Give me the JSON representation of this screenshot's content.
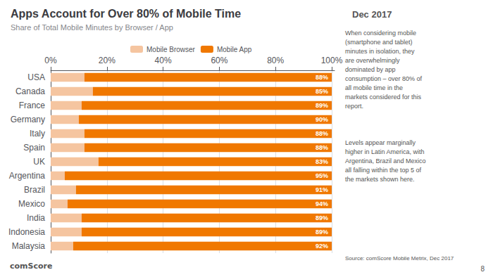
{
  "chart_data": {
    "type": "bar",
    "orientation": "horizontal",
    "stacked": true,
    "grid": true,
    "legend": "top",
    "title": "Apps Account for Over 80% of Mobile Time",
    "subtitle": "Share of Total Mobile Minutes by Browser / App",
    "annotations": [
      "Dec 2017",
      "When considering mobile\n(smartphone and tablet)\nminutes in isolation, they\nare overwhelmingly\ndominated by app\nconsumption – over 80% of\nall mobile time in the\nmarkets considered for this\nreport.",
      "Levels appear marginally\nhigher in Latin America, with\nArgentina, Brazil and Mexico\nall falling within the top 5 of\nthe markets shown here.",
      "Source: comScore Mobile Metrix, Dec 2017",
      "comScore",
      "8"
    ],
    "categories": [
      "USA",
      "Canada",
      "France",
      "Germany",
      "Italy",
      "Spain",
      "UK",
      "Argentina",
      "Brazil",
      "Mexico",
      "India",
      "Indonesia",
      "Malaysia"
    ],
    "series": [
      {
        "name": "Mobile Browser",
        "color": "#F5C5A0",
        "values": [
          12,
          15,
          11,
          10,
          12,
          12,
          17,
          5,
          9,
          6,
          11,
          11,
          8
        ]
      },
      {
        "name": "Mobile App",
        "color": "#F07800",
        "values": [
          88,
          85,
          89,
          90,
          88,
          88,
          83,
          95,
          91,
          94,
          89,
          89,
          92
        ],
        "data_labels": true,
        "value_labels": [
          "88%",
          "85%",
          "89%",
          "90%",
          "88%",
          "88%",
          "83%",
          "95%",
          "91%",
          "94%",
          "89%",
          "89%",
          "92%"
        ]
      }
    ],
    "xlim": [
      0,
      101
    ],
    "xticks": [
      {
        "value": 0,
        "label": "0%"
      },
      {
        "value": 20,
        "label": "20%"
      },
      {
        "value": 40,
        "label": "40%"
      },
      {
        "value": 60,
        "label": "60%"
      },
      {
        "value": 80,
        "label": "80%"
      },
      {
        "value": 100,
        "label": "100%"
      }
    ]
  }
}
